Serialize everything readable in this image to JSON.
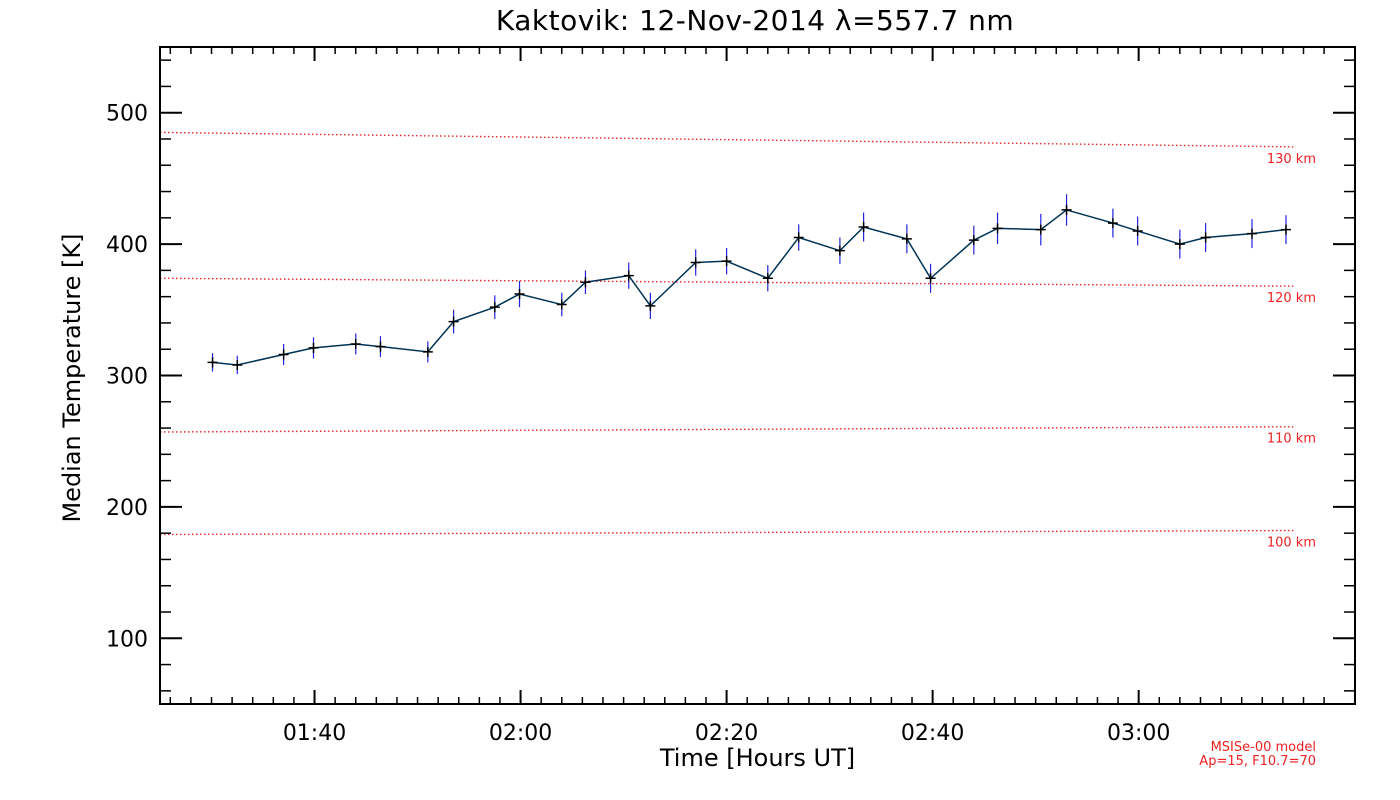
{
  "chart_data": {
    "type": "line",
    "title": "Kaktovik: 12-Nov-2014 λ=557.7 nm",
    "xlabel": "Time [Hours UT]",
    "ylabel": "Median Temperature [K]",
    "x_unit": "minutes after 00:00 UT",
    "xlim": [
      85,
      201
    ],
    "ylim": [
      50,
      550
    ],
    "x_ticks": [
      {
        "value": 100,
        "label": "01:40"
      },
      {
        "value": 120,
        "label": "02:00"
      },
      {
        "value": 140,
        "label": "02:20"
      },
      {
        "value": 160,
        "label": "02:40"
      },
      {
        "value": 180,
        "label": "03:00"
      }
    ],
    "y_ticks": [
      {
        "value": 100,
        "label": "100"
      },
      {
        "value": 200,
        "label": "200"
      },
      {
        "value": 300,
        "label": "300"
      },
      {
        "value": 400,
        "label": "400"
      },
      {
        "value": 500,
        "label": "500"
      }
    ],
    "series": [
      {
        "name": "Median Temperature",
        "color": "#003355",
        "marker": "+",
        "error_color": "#2222dd",
        "x": [
          90.1,
          92.5,
          97.0,
          99.9,
          104.0,
          106.4,
          111.0,
          113.5,
          117.5,
          119.9,
          124.0,
          126.3,
          130.5,
          132.6,
          137.0,
          140.0,
          144.0,
          147.0,
          151.0,
          153.3,
          157.5,
          159.8,
          164.0,
          166.3,
          170.5,
          173.0,
          177.5,
          179.9,
          184.0,
          186.5,
          191.0,
          194.3
        ],
        "y": [
          310,
          308,
          316,
          321,
          324,
          322,
          318,
          341,
          352,
          362,
          354,
          371,
          376,
          353,
          386,
          387,
          374,
          405,
          395,
          413,
          404,
          374,
          403,
          412,
          411,
          426,
          416,
          410,
          400,
          405,
          408,
          411
        ],
        "error": [
          7,
          7,
          8,
          8,
          8,
          8,
          8,
          9,
          9,
          10,
          9,
          9,
          10,
          10,
          10,
          10,
          10,
          10,
          10,
          11,
          11,
          11,
          11,
          12,
          12,
          12,
          11,
          11,
          11,
          11,
          11,
          11
        ]
      }
    ],
    "reference_lines": [
      {
        "label": "130 km",
        "color": "#ee2222",
        "style": "dotted",
        "x": [
          85,
          195
        ],
        "y": [
          485,
          474
        ]
      },
      {
        "label": "120 km",
        "color": "#ee2222",
        "style": "dotted",
        "x": [
          85,
          195
        ],
        "y": [
          374,
          368
        ]
      },
      {
        "label": "110 km",
        "color": "#ee2222",
        "style": "dotted",
        "x": [
          85,
          195
        ],
        "y": [
          257,
          261
        ]
      },
      {
        "label": "100 km",
        "color": "#ee2222",
        "style": "dotted",
        "x": [
          85,
          195
        ],
        "y": [
          179,
          182
        ]
      }
    ],
    "annotation": {
      "model": "MSISe-00 model",
      "params": "Ap=15, F10.7=70",
      "color": "#ee2222"
    }
  }
}
